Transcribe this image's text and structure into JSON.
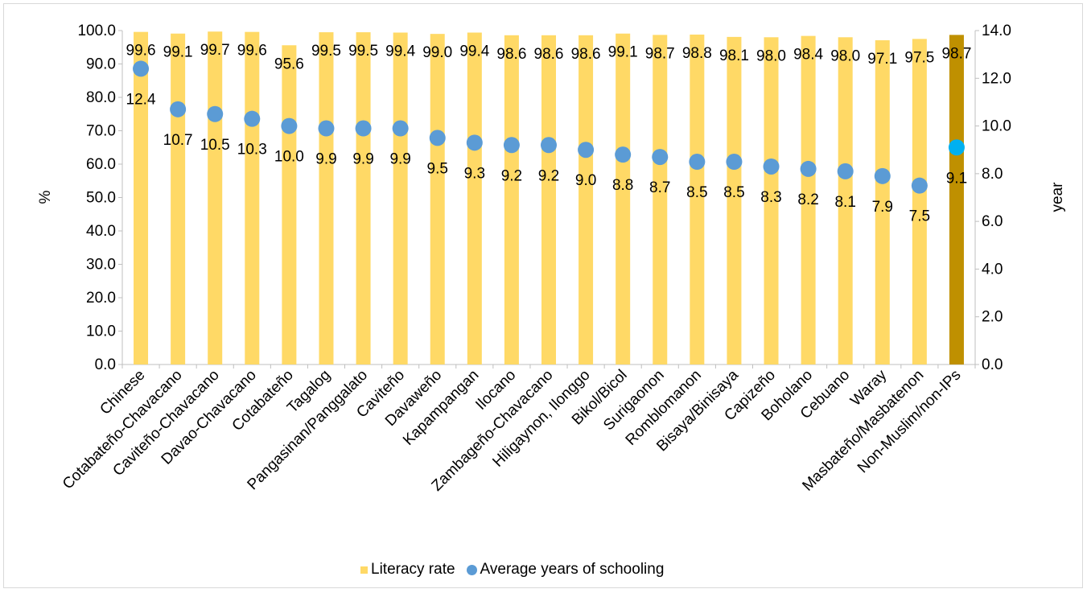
{
  "chart_data": {
    "type": "bar",
    "categories": [
      "Chinese",
      "Cotabateño-Chavacano",
      "Caviteño-Chavacano",
      "Davao-Chavacano",
      "Cotabateño",
      "Tagalog",
      "Pangasinan/Panggalato",
      "Caviteño",
      "Davaweño",
      "Kapampangan",
      "Ilocano",
      "Zambageño-Chavacano",
      "Hiligaynon, Ilonggo",
      "Bikol/Bicol",
      "Surigaonon",
      "Romblomanon",
      "Bisaya/Binisaya",
      "Capizeño",
      "Boholano",
      "Cebuano",
      "Waray",
      "Masbateño/Masbatenon",
      "Non-Muslim/non-IPs"
    ],
    "series": [
      {
        "name": "Literacy rate",
        "axis": "left",
        "values": [
          99.6,
          99.1,
          99.7,
          99.6,
          95.6,
          99.5,
          99.5,
          99.4,
          99.0,
          99.4,
          98.6,
          98.6,
          98.6,
          99.1,
          98.7,
          98.8,
          98.1,
          98.0,
          98.4,
          98.0,
          97.1,
          97.5,
          98.7
        ],
        "labels": [
          "99.6",
          "99.1",
          "99.7",
          "99.6",
          "95.6",
          "99.5",
          "99.5",
          "99.4",
          "99.0",
          "99.4",
          "98.6",
          "98.6",
          "98.6",
          "99.1",
          "98.7",
          "98.8",
          "98.1",
          "98.0",
          "98.4",
          "98.0",
          "97.1",
          "97.5",
          "98.7"
        ],
        "color": "#FFD966",
        "highlight_color": "#BF9000"
      },
      {
        "name": "Average years of schooling",
        "axis": "right",
        "values": [
          12.4,
          10.7,
          10.5,
          10.3,
          10.0,
          9.9,
          9.9,
          9.9,
          9.5,
          9.3,
          9.2,
          9.2,
          9.0,
          8.8,
          8.7,
          8.5,
          8.5,
          8.3,
          8.2,
          8.1,
          7.9,
          7.5,
          9.1
        ],
        "labels": [
          "12.4",
          "10.7",
          "10.5",
          "10.3",
          "10.0",
          "9.9",
          "9.9",
          "9.9",
          "9.5",
          "9.3",
          "9.2",
          "9.2",
          "9.0",
          "8.8",
          "8.7",
          "8.5",
          "8.5",
          "8.3",
          "8.2",
          "8.1",
          "7.9",
          "7.5",
          "9.1"
        ],
        "color": "#5B9BD5",
        "highlight_color": "#00B0F0"
      }
    ],
    "highlight_index": 22,
    "ylabel": "%",
    "ylabel_right": "year",
    "ylim": [
      0,
      100
    ],
    "ylim_right": [
      0,
      14
    ],
    "yticks": [
      "0.0",
      "10.0",
      "20.0",
      "30.0",
      "40.0",
      "50.0",
      "60.0",
      "70.0",
      "80.0",
      "90.0",
      "100.0"
    ],
    "yticks_right": [
      "0.0",
      "2.0",
      "4.0",
      "6.0",
      "8.0",
      "10.0",
      "12.0",
      "14.0"
    ],
    "grid": false,
    "legend_position": "bottom"
  }
}
